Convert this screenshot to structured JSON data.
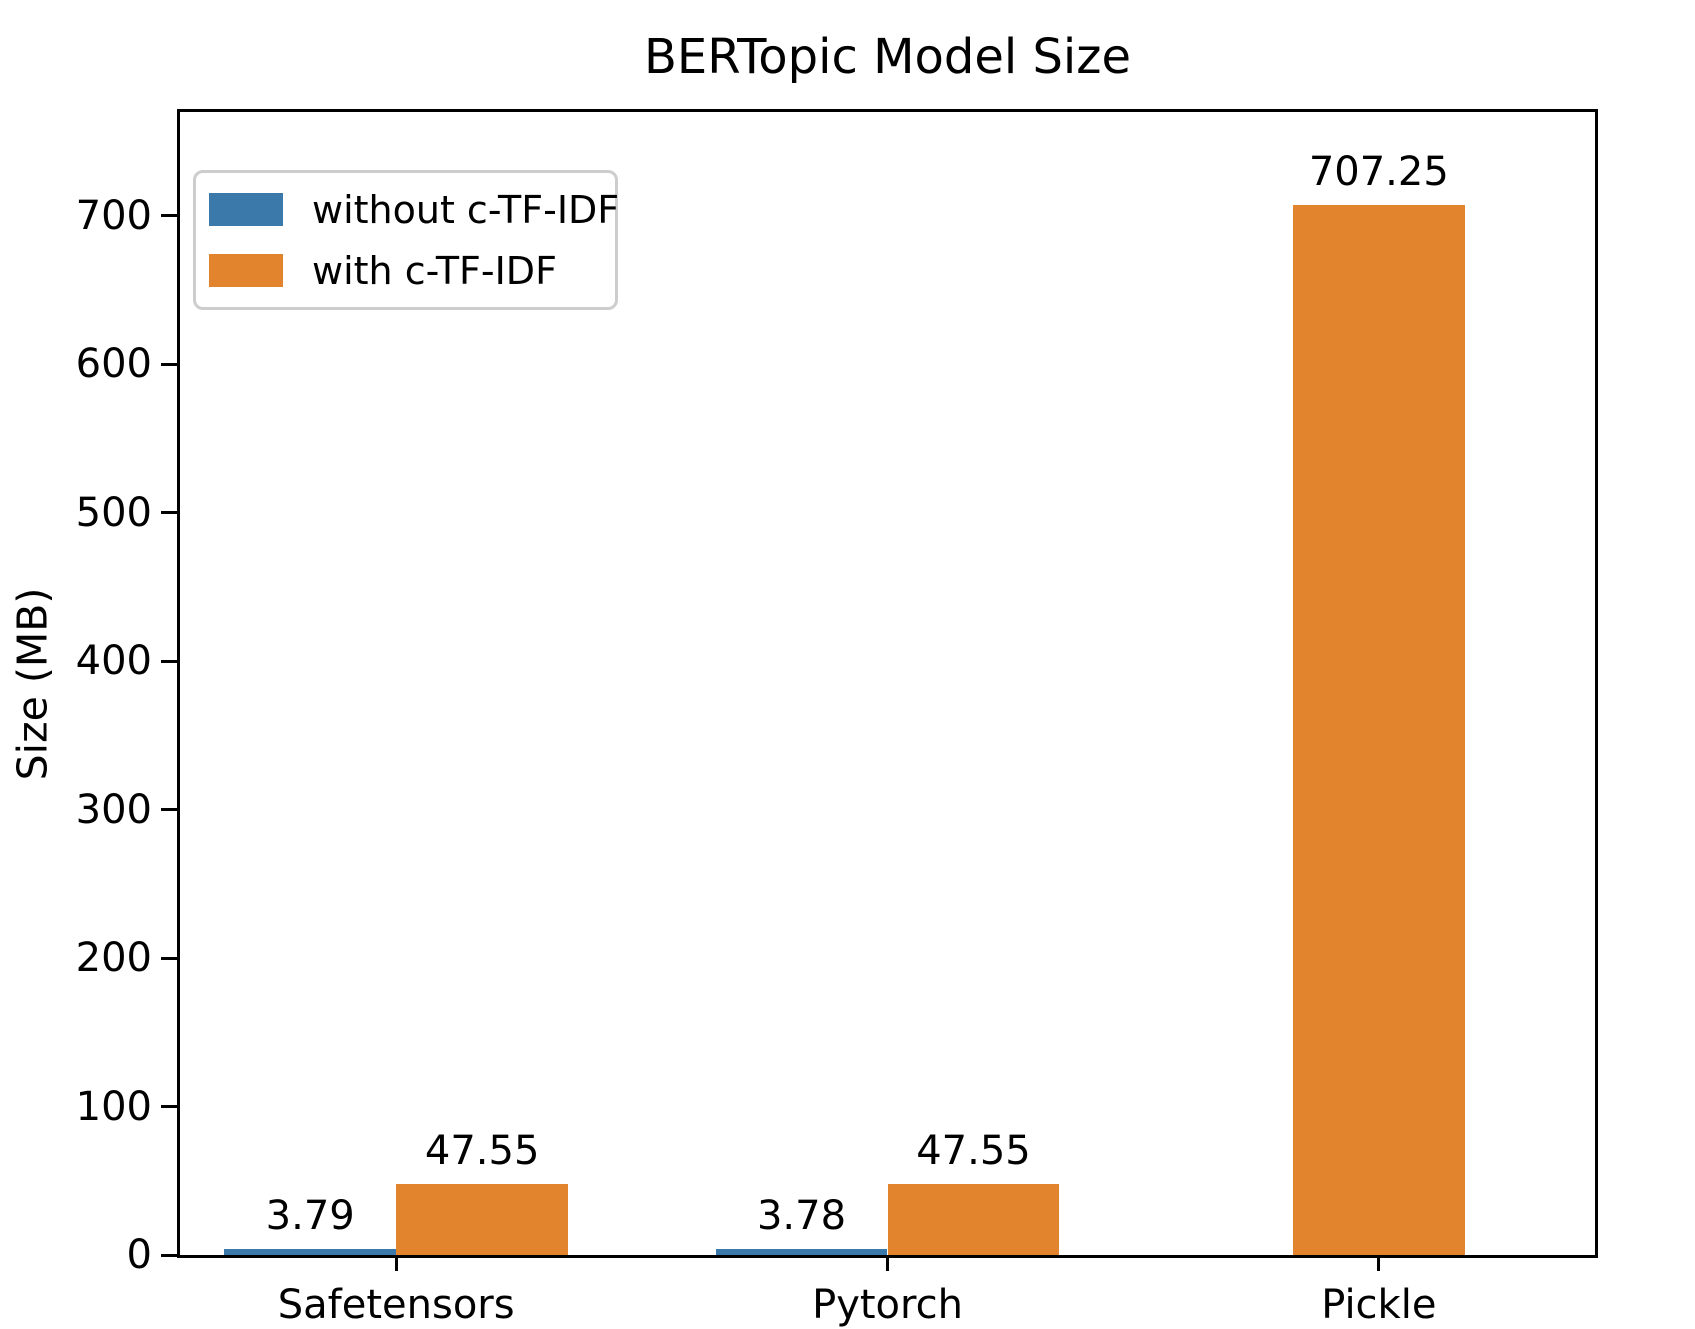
{
  "chart_data": {
    "type": "bar",
    "title": "BERTopic Model Size",
    "xlabel": "",
    "ylabel": "Size (MB)",
    "categories": [
      "Safetensors",
      "Pytorch",
      "Pickle"
    ],
    "series": [
      {
        "name": "without c-TF-IDF",
        "color": "#3A79A9",
        "values": [
          3.79,
          3.78,
          null
        ],
        "labels": [
          "3.79",
          "3.78",
          null
        ]
      },
      {
        "name": "with c-TF-IDF",
        "color": "#E2832D",
        "values": [
          47.55,
          47.55,
          707.25
        ],
        "labels": [
          "47.55",
          "47.55",
          "707.25"
        ]
      }
    ],
    "yticks": [
      0,
      100,
      200,
      300,
      400,
      500,
      600,
      700
    ],
    "ylim": [
      0,
      770
    ],
    "xlim": [
      -0.44,
      2.44
    ],
    "bar_width": 0.35,
    "grid": false,
    "legend_position": "upper left",
    "background": "#ffffff",
    "text_color": "#000000"
  }
}
